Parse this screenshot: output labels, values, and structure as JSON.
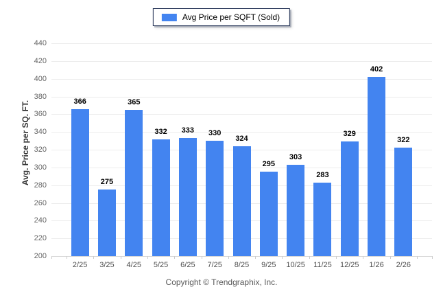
{
  "chart_data": {
    "type": "bar",
    "title": "",
    "legend": {
      "label": "Avg Price per SQFT (Sold)",
      "position": "top-center"
    },
    "categories": [
      "2/25",
      "3/25",
      "4/25",
      "5/25",
      "6/25",
      "7/25",
      "8/25",
      "9/25",
      "10/25",
      "11/25",
      "12/25",
      "1/26",
      "2/26"
    ],
    "values": [
      366,
      275,
      365,
      332,
      333,
      330,
      324,
      295,
      303,
      283,
      329,
      402,
      322
    ],
    "xlabel": "",
    "ylabel": "Avg. Price per SQ. FT.",
    "ylim": [
      200,
      440
    ],
    "yticks": [
      200,
      220,
      240,
      260,
      280,
      300,
      320,
      340,
      360,
      380,
      400,
      420,
      440
    ],
    "grid": "horizontal",
    "bar_color": "#4384f0",
    "value_labels": true
  },
  "footer": {
    "copyright": "Copyright © Trendgraphix, Inc."
  }
}
